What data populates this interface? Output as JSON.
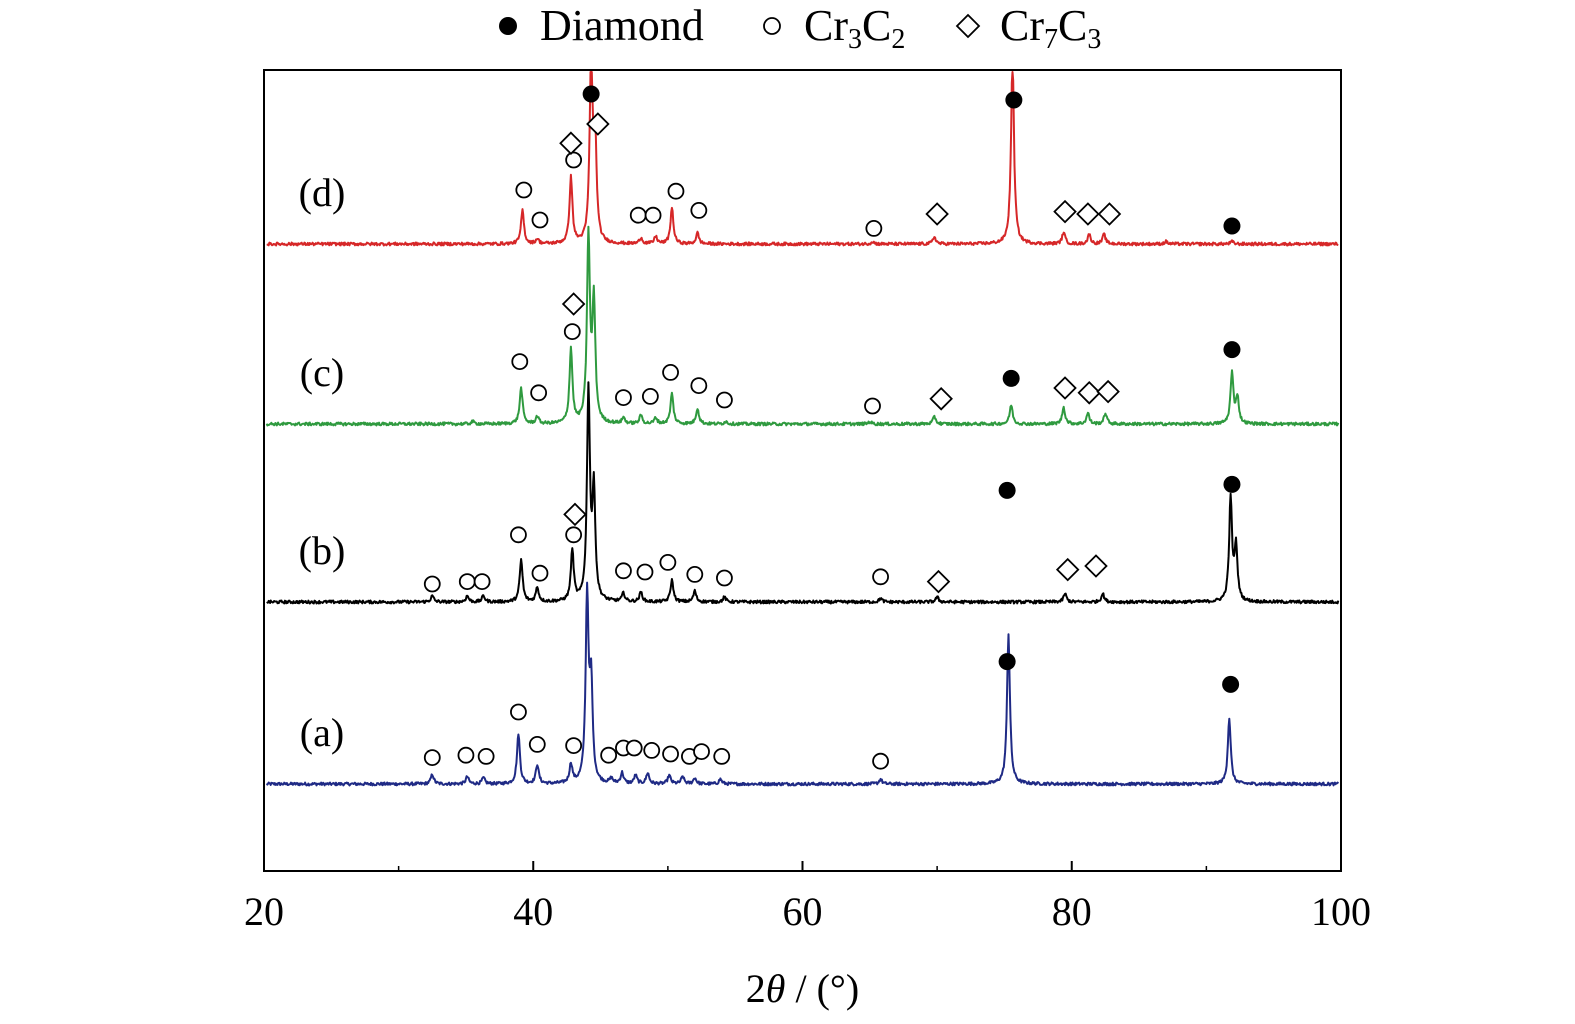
{
  "chart_data": {
    "type": "line",
    "xlabel_prefix": "2",
    "xlabel_theta": "θ",
    "xlabel_suffix": " / (°)",
    "xlim": [
      20,
      100
    ],
    "xticks": [
      20,
      40,
      60,
      80,
      100
    ],
    "y_ticks_shown": false,
    "grid": false,
    "legend_position": "top-center",
    "legend": [
      {
        "marker": "filled-circle",
        "label": "Diamond",
        "label_main": "Diamond",
        "sub1": "",
        "mid": "",
        "sub2": ""
      },
      {
        "marker": "open-circle",
        "label": "Cr3C2",
        "label_main": "Cr",
        "sub1": "3",
        "mid": "C",
        "sub2": "2"
      },
      {
        "marker": "open-diamond",
        "label": "Cr7C3",
        "label_main": "Cr",
        "sub1": "7",
        "mid": "C",
        "sub2": "3"
      }
    ],
    "series": [
      {
        "name": "(a)",
        "color": "#1f2a85",
        "baseline": 0.0,
        "peaks": [
          [
            32.5,
            0.08
          ],
          [
            35.1,
            0.06
          ],
          [
            36.3,
            0.05
          ],
          [
            38.9,
            0.42
          ],
          [
            40.3,
            0.16
          ],
          [
            42.8,
            0.16
          ],
          [
            44.0,
            1.55
          ],
          [
            44.3,
            0.8
          ],
          [
            45.8,
            0.04
          ],
          [
            46.6,
            0.09
          ],
          [
            47.6,
            0.07
          ],
          [
            48.5,
            0.09
          ],
          [
            50.1,
            0.07
          ],
          [
            51.1,
            0.06
          ],
          [
            52.0,
            0.05
          ],
          [
            53.9,
            0.04
          ],
          [
            65.8,
            0.04
          ],
          [
            75.3,
            1.25
          ],
          [
            91.7,
            0.55
          ]
        ],
        "markers": [
          {
            "type": "open-circle",
            "x": 32.5,
            "h": 0.22
          },
          {
            "type": "open-circle",
            "x": 35.0,
            "h": 0.24
          },
          {
            "type": "open-circle",
            "x": 36.5,
            "h": 0.23
          },
          {
            "type": "open-circle",
            "x": 38.9,
            "h": 0.6
          },
          {
            "type": "open-circle",
            "x": 40.3,
            "h": 0.33
          },
          {
            "type": "open-circle",
            "x": 43.0,
            "h": 0.32
          },
          {
            "type": "open-circle",
            "x": 45.6,
            "h": 0.24
          },
          {
            "type": "open-circle",
            "x": 46.7,
            "h": 0.3
          },
          {
            "type": "open-circle",
            "x": 47.5,
            "h": 0.3
          },
          {
            "type": "open-circle",
            "x": 48.8,
            "h": 0.28
          },
          {
            "type": "open-circle",
            "x": 50.2,
            "h": 0.25
          },
          {
            "type": "open-circle",
            "x": 51.6,
            "h": 0.23
          },
          {
            "type": "open-circle",
            "x": 52.5,
            "h": 0.27
          },
          {
            "type": "open-circle",
            "x": 54.0,
            "h": 0.23
          },
          {
            "type": "open-circle",
            "x": 65.8,
            "h": 0.19
          },
          {
            "type": "filled-circle",
            "x": 75.2,
            "h": 1.02
          },
          {
            "type": "filled-circle",
            "x": 91.8,
            "h": 0.83
          }
        ]
      },
      {
        "name": "(b)",
        "color": "#000000",
        "baseline": 0.0,
        "peaks": [
          [
            32.5,
            0.05
          ],
          [
            35.1,
            0.05
          ],
          [
            36.3,
            0.05
          ],
          [
            39.1,
            0.35
          ],
          [
            40.3,
            0.12
          ],
          [
            42.9,
            0.42
          ],
          [
            44.1,
            1.75
          ],
          [
            44.5,
            0.9
          ],
          [
            46.7,
            0.07
          ],
          [
            48.0,
            0.08
          ],
          [
            50.3,
            0.18
          ],
          [
            52.0,
            0.09
          ],
          [
            54.2,
            0.04
          ],
          [
            65.8,
            0.03
          ],
          [
            70.0,
            0.04
          ],
          [
            79.5,
            0.07
          ],
          [
            82.3,
            0.07
          ],
          [
            91.8,
            0.85
          ],
          [
            92.2,
            0.45
          ]
        ],
        "markers": [
          {
            "type": "open-circle",
            "x": 32.5,
            "h": 0.15
          },
          {
            "type": "open-circle",
            "x": 35.1,
            "h": 0.17
          },
          {
            "type": "open-circle",
            "x": 36.2,
            "h": 0.17
          },
          {
            "type": "open-circle",
            "x": 38.9,
            "h": 0.56
          },
          {
            "type": "open-circle",
            "x": 40.5,
            "h": 0.24
          },
          {
            "type": "open-circle",
            "x": 43.0,
            "h": 0.56
          },
          {
            "type": "open-diamond",
            "x": 43.1,
            "h": 0.73
          },
          {
            "type": "open-circle",
            "x": 46.7,
            "h": 0.26
          },
          {
            "type": "open-circle",
            "x": 48.3,
            "h": 0.25
          },
          {
            "type": "open-circle",
            "x": 50.0,
            "h": 0.33
          },
          {
            "type": "open-circle",
            "x": 52.0,
            "h": 0.23
          },
          {
            "type": "open-circle",
            "x": 54.2,
            "h": 0.2
          },
          {
            "type": "open-circle",
            "x": 65.8,
            "h": 0.21
          },
          {
            "type": "open-diamond",
            "x": 70.1,
            "h": 0.17
          },
          {
            "type": "open-diamond",
            "x": 79.7,
            "h": 0.27
          },
          {
            "type": "open-diamond",
            "x": 81.8,
            "h": 0.3
          },
          {
            "type": "filled-circle",
            "x": 75.2,
            "h": 0.93
          },
          {
            "type": "filled-circle",
            "x": 91.9,
            "h": 0.98
          }
        ]
      },
      {
        "name": "(c)",
        "color": "#2f9a3f",
        "baseline": 0.0,
        "peaks": [
          [
            35.5,
            0.02
          ],
          [
            39.1,
            0.3
          ],
          [
            40.3,
            0.06
          ],
          [
            42.8,
            0.62
          ],
          [
            44.1,
            1.55
          ],
          [
            44.5,
            1.0
          ],
          [
            46.7,
            0.05
          ],
          [
            48.0,
            0.07
          ],
          [
            49.1,
            0.05
          ],
          [
            50.3,
            0.25
          ],
          [
            52.2,
            0.13
          ],
          [
            54.3,
            0.02
          ],
          [
            65.0,
            0.02
          ],
          [
            69.8,
            0.06
          ],
          [
            75.5,
            0.16
          ],
          [
            79.4,
            0.14
          ],
          [
            81.2,
            0.09
          ],
          [
            82.5,
            0.09
          ],
          [
            91.9,
            0.42
          ],
          [
            92.3,
            0.22
          ]
        ],
        "markers": [
          {
            "type": "open-circle",
            "x": 39.0,
            "h": 0.52
          },
          {
            "type": "open-circle",
            "x": 40.4,
            "h": 0.26
          },
          {
            "type": "open-circle",
            "x": 42.9,
            "h": 0.77
          },
          {
            "type": "open-diamond",
            "x": 43.0,
            "h": 1.0
          },
          {
            "type": "open-circle",
            "x": 46.7,
            "h": 0.22
          },
          {
            "type": "open-circle",
            "x": 48.7,
            "h": 0.23
          },
          {
            "type": "open-circle",
            "x": 50.2,
            "h": 0.43
          },
          {
            "type": "open-circle",
            "x": 52.3,
            "h": 0.32
          },
          {
            "type": "open-circle",
            "x": 54.2,
            "h": 0.2
          },
          {
            "type": "open-circle",
            "x": 65.2,
            "h": 0.15
          },
          {
            "type": "open-diamond",
            "x": 70.3,
            "h": 0.21
          },
          {
            "type": "open-diamond",
            "x": 79.5,
            "h": 0.3
          },
          {
            "type": "open-diamond",
            "x": 81.3,
            "h": 0.26
          },
          {
            "type": "open-diamond",
            "x": 82.7,
            "h": 0.27
          },
          {
            "type": "filled-circle",
            "x": 75.5,
            "h": 0.38
          },
          {
            "type": "filled-circle",
            "x": 91.9,
            "h": 0.62
          }
        ]
      },
      {
        "name": "(d)",
        "color": "#d62728",
        "baseline": 0.0,
        "peaks": [
          [
            39.2,
            0.28
          ],
          [
            40.3,
            0.04
          ],
          [
            42.8,
            0.55
          ],
          [
            44.3,
            1.55
          ],
          [
            44.6,
            0.8
          ],
          [
            48.0,
            0.05
          ],
          [
            49.1,
            0.06
          ],
          [
            50.3,
            0.3
          ],
          [
            52.2,
            0.09
          ],
          [
            65.2,
            0.02
          ],
          [
            69.8,
            0.06
          ],
          [
            75.6,
            1.55
          ],
          [
            79.4,
            0.1
          ],
          [
            81.3,
            0.08
          ],
          [
            82.4,
            0.08
          ],
          [
            87.0,
            0.02
          ],
          [
            91.9,
            0.02
          ]
        ],
        "markers": [
          {
            "type": "open-circle",
            "x": 39.3,
            "h": 0.45
          },
          {
            "type": "open-circle",
            "x": 40.5,
            "h": 0.2
          },
          {
            "type": "open-circle",
            "x": 43.0,
            "h": 0.7
          },
          {
            "type": "open-diamond",
            "x": 42.8,
            "h": 0.84
          },
          {
            "type": "filled-circle",
            "x": 44.3,
            "h": 1.25
          },
          {
            "type": "open-diamond",
            "x": 44.8,
            "h": 1.0
          },
          {
            "type": "open-circle",
            "x": 47.8,
            "h": 0.24
          },
          {
            "type": "open-circle",
            "x": 48.9,
            "h": 0.24
          },
          {
            "type": "open-circle",
            "x": 50.6,
            "h": 0.44
          },
          {
            "type": "open-circle",
            "x": 52.3,
            "h": 0.28
          },
          {
            "type": "open-circle",
            "x": 65.3,
            "h": 0.13
          },
          {
            "type": "open-diamond",
            "x": 70.0,
            "h": 0.25
          },
          {
            "type": "open-diamond",
            "x": 79.5,
            "h": 0.27
          },
          {
            "type": "open-diamond",
            "x": 81.2,
            "h": 0.25
          },
          {
            "type": "open-diamond",
            "x": 82.8,
            "h": 0.25
          },
          {
            "type": "filled-circle",
            "x": 75.7,
            "h": 1.2
          },
          {
            "type": "filled-circle",
            "x": 91.9,
            "h": 0.15
          }
        ]
      }
    ]
  }
}
